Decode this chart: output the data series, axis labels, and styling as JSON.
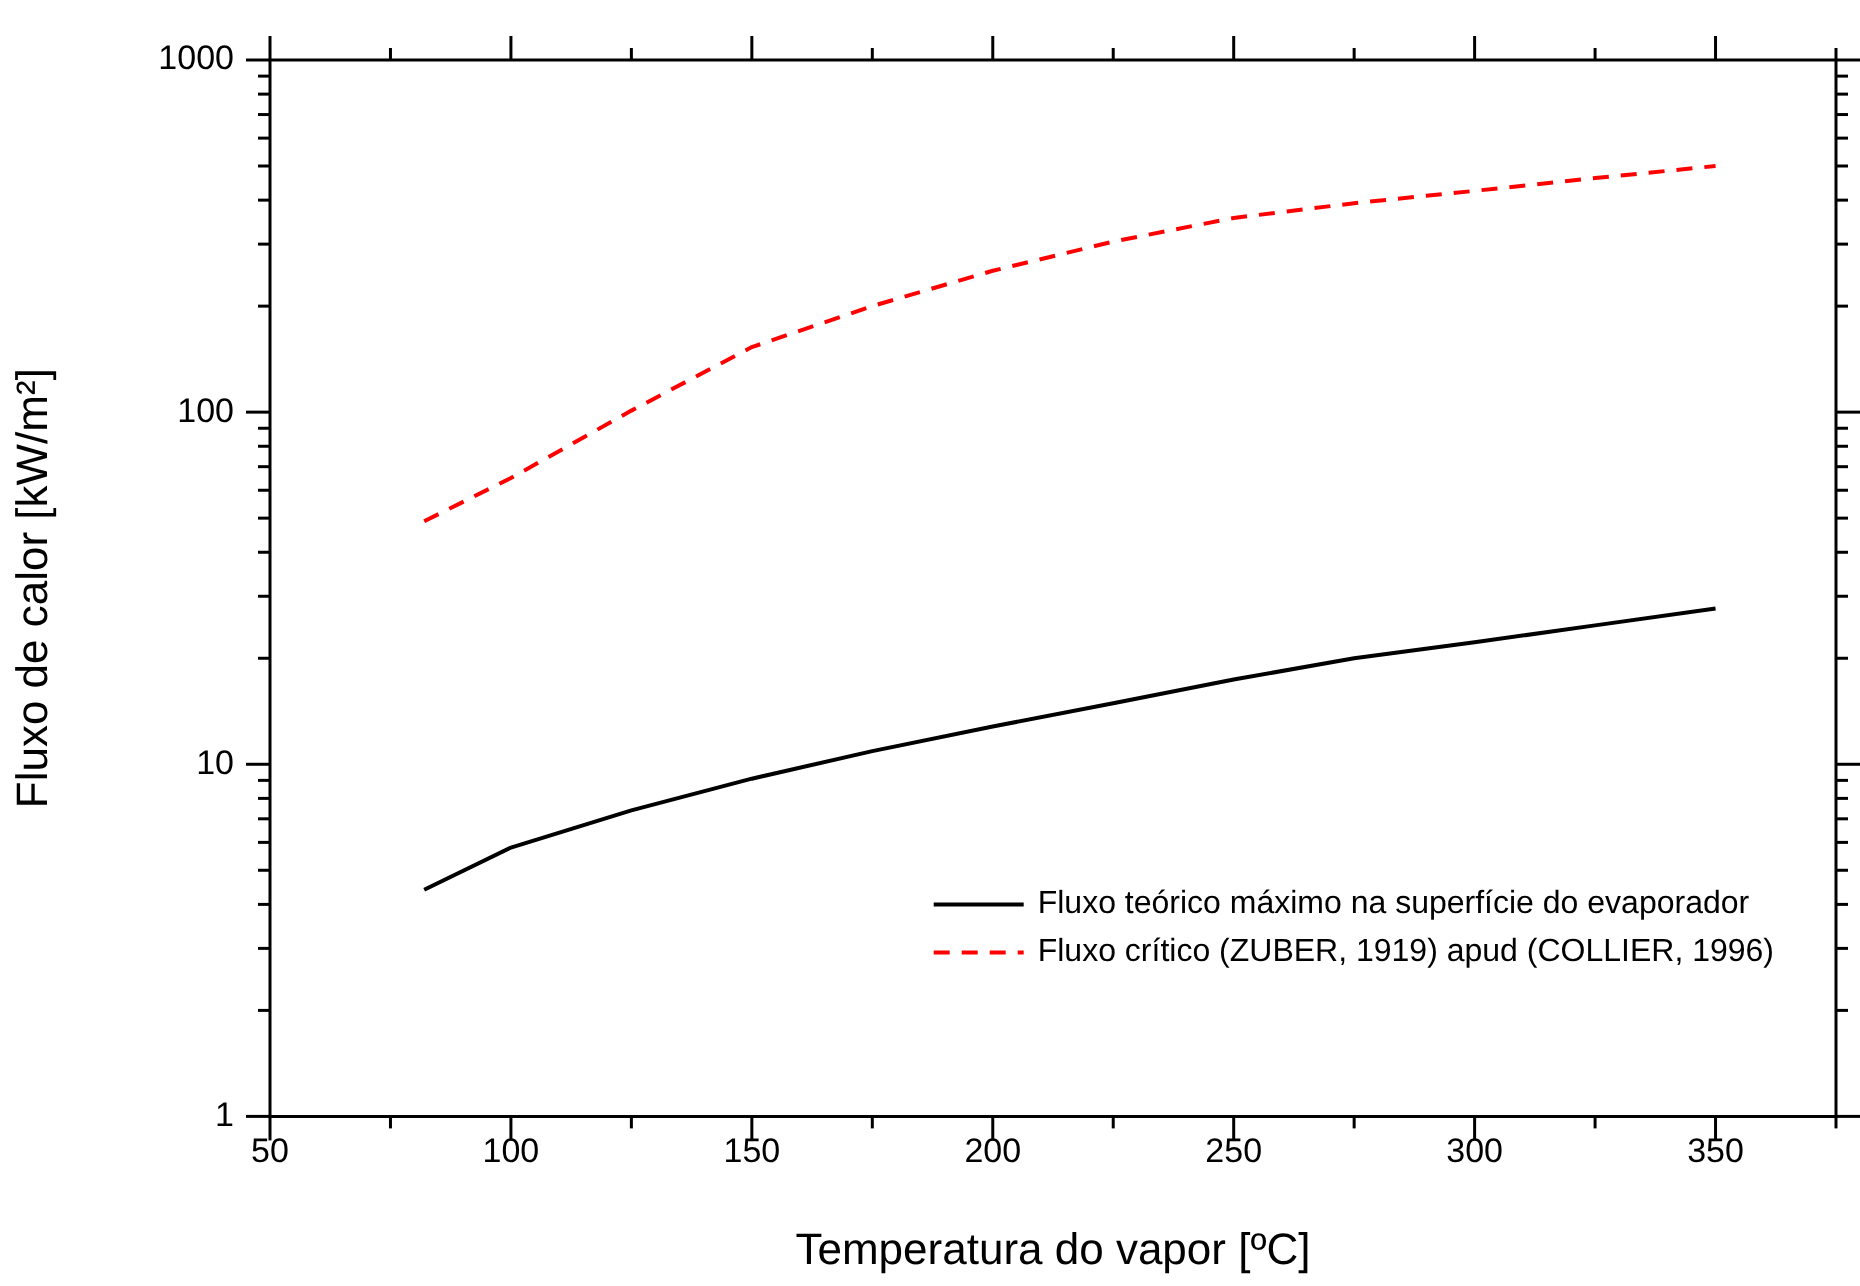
{
  "chart_data": {
    "type": "line",
    "xlabel": "Temperatura do vapor [ºC]",
    "ylabel": "Fluxo de calor [kW/m²]",
    "log": "y",
    "xlim": [
      50,
      375
    ],
    "xticks": [
      50,
      100,
      150,
      200,
      250,
      300,
      350
    ],
    "ylim": [
      1,
      1000
    ],
    "yticks": [
      1,
      10,
      100,
      1000
    ],
    "grid": false,
    "legend": "bottom right",
    "marker": "none",
    "series": [
      {
        "name": "Fluxo teórico máximo na superfície do evaporador",
        "color": "#000000",
        "line_style": "solid",
        "x": [
          82,
          100,
          125,
          150,
          175,
          200,
          225,
          250,
          275,
          300,
          325,
          350
        ],
        "values": [
          4.4,
          5.8,
          7.4,
          9.1,
          10.9,
          12.8,
          14.9,
          17.4,
          20,
          22.2,
          24.8,
          27.7
        ]
      },
      {
        "name": "Fluxo crítico (ZUBER, 1919) apud (COLLIER, 1996)",
        "color": "#ff0000",
        "line_style": "dashed",
        "x": [
          82,
          100,
          125,
          150,
          175,
          200,
          225,
          250,
          275,
          300,
          325,
          350
        ],
        "values": [
          49,
          65,
          101,
          153,
          200,
          252,
          305,
          356,
          392,
          425,
          462,
          500
        ]
      }
    ]
  }
}
